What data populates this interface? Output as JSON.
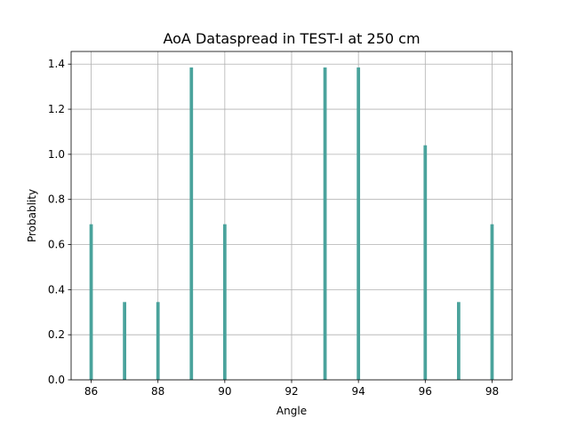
{
  "chart_data": {
    "type": "bar",
    "title": "AoA Dataspread in TEST-I at 250 cm",
    "xlabel": "Angle",
    "ylabel": "Probablity",
    "xlim": [
      85.4,
      98.6
    ],
    "ylim": [
      0,
      1.456
    ],
    "grid": true,
    "bar_color": "#4aa39c",
    "bar_width": 0.1,
    "xticks": [
      86,
      88,
      90,
      92,
      94,
      96,
      98
    ],
    "xtick_labels": [
      "86",
      "88",
      "90",
      "92",
      "94",
      "96",
      "98"
    ],
    "yticks": [
      0.0,
      0.2,
      0.4,
      0.6,
      0.8,
      1.0,
      1.2,
      1.4
    ],
    "ytick_labels": [
      "0.0",
      "0.2",
      "0.4",
      "0.6",
      "0.8",
      "1.0",
      "1.2",
      "1.4"
    ],
    "x": [
      86,
      87,
      88,
      89,
      90,
      93,
      94,
      96,
      97,
      98
    ],
    "values": [
      0.69,
      0.345,
      0.345,
      1.385,
      0.69,
      1.385,
      1.385,
      1.04,
      0.345,
      0.69
    ]
  }
}
